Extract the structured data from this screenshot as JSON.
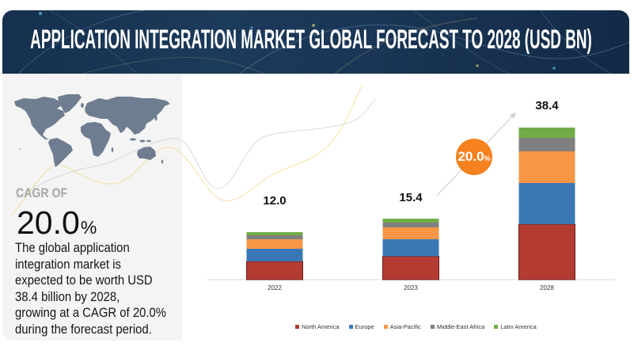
{
  "header": {
    "title": "APPLICATION INTEGRATION MARKET GLOBAL FORECAST TO 2028 (USD BN)"
  },
  "summary": {
    "cagr_label": "CAGR OF",
    "cagr_value": "20.0",
    "cagr_unit": "%",
    "description_lines": [
      "The global application",
      "integration market is",
      "expected to be worth USD",
      "38.4 billion by 2028,",
      "growing at a CAGR of 20.0%",
      "during the forecast period."
    ]
  },
  "map": {
    "icon": "world-map-icon",
    "color": "#6e7d90"
  },
  "chart_data": {
    "type": "bar",
    "stacked": true,
    "title": "APPLICATION INTEGRATION MARKET GLOBAL FORECAST TO 2028 (USD BN)",
    "xlabel": "",
    "ylabel": "",
    "categories": [
      "2022",
      "2023",
      "2028"
    ],
    "series": [
      {
        "name": "North America",
        "color": "#b43b32",
        "values": [
          4.6,
          5.9,
          14.0
        ]
      },
      {
        "name": "Europe",
        "color": "#3a78b5",
        "values": [
          3.2,
          4.3,
          10.4
        ]
      },
      {
        "name": "Asia-Pacific",
        "color": "#f79646",
        "values": [
          2.4,
          3.0,
          8.0
        ]
      },
      {
        "name": "Middle-East Africa",
        "color": "#7f7f7f",
        "values": [
          1.0,
          1.2,
          3.4
        ]
      },
      {
        "name": "Latin America",
        "color": "#70ad47",
        "values": [
          0.8,
          1.0,
          2.6
        ]
      }
    ],
    "totals": [
      12.0,
      15.4,
      38.4
    ],
    "data_labels": [
      "12.0",
      "15.4",
      "38.4"
    ],
    "ylim": [
      0,
      40
    ],
    "grid": false,
    "legend": "bottom",
    "annotation": {
      "cagr_bubble_value": "20.0",
      "cagr_bubble_unit": "%",
      "cagr_bubble_color": "#f5821f"
    }
  }
}
